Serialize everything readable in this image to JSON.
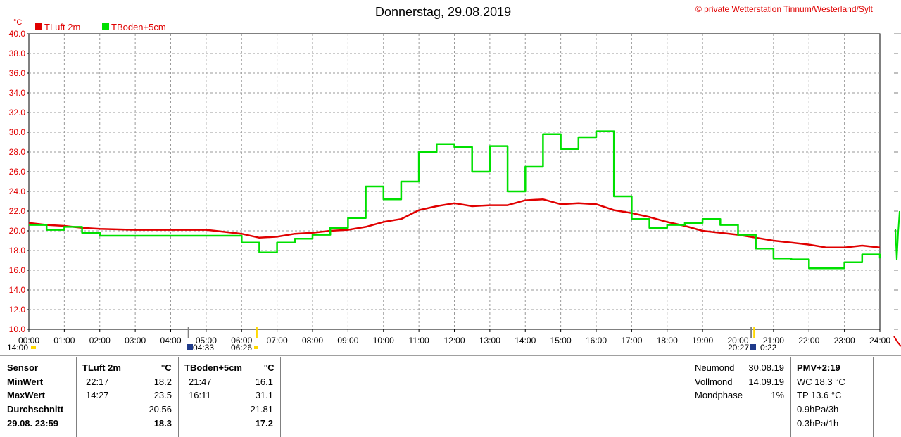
{
  "header": {
    "title": "Donnerstag, 29.08.2019",
    "credit": "© private Wetterstation Tinnum/Westerland/Sylt",
    "unit": "°C"
  },
  "legend": [
    {
      "label": "TLuft 2m",
      "color": "#e00000"
    },
    {
      "label": "TBoden+5cm",
      "color": "#00e000"
    }
  ],
  "chart_data": {
    "type": "line",
    "title": "Donnerstag, 29.08.2019",
    "ylabel": "°C",
    "ylim": [
      10,
      40
    ],
    "yticks": [
      "10.0",
      "12.0",
      "14.0",
      "16.0",
      "18.0",
      "20.0",
      "22.0",
      "24.0",
      "26.0",
      "28.0",
      "30.0",
      "32.0",
      "34.0",
      "36.0",
      "38.0",
      "40.0"
    ],
    "xlim": [
      0,
      24
    ],
    "xticks": [
      "00:00",
      "01:00",
      "02:00",
      "03:00",
      "04:00",
      "05:00",
      "06:00",
      "07:00",
      "08:00",
      "09:00",
      "10:00",
      "11:00",
      "12:00",
      "13:00",
      "14:00",
      "15:00",
      "16:00",
      "17:00",
      "18:00",
      "19:00",
      "20:00",
      "21:00",
      "22:00",
      "23:00",
      "24:00"
    ],
    "grid": true,
    "legend_position": "top-left",
    "series": [
      {
        "name": "TLuft 2m",
        "color": "#e00000",
        "x": [
          0,
          0.5,
          1,
          1.5,
          2,
          3,
          4,
          5,
          5.5,
          6,
          6.5,
          7,
          7.5,
          8,
          8.5,
          9,
          9.5,
          10,
          10.5,
          11,
          11.5,
          12,
          12.5,
          13,
          13.5,
          14,
          14.5,
          15,
          15.5,
          16,
          16.5,
          17,
          17.5,
          18,
          18.5,
          19,
          19.5,
          20,
          20.5,
          21,
          21.5,
          22,
          22.5,
          23,
          23.5,
          24
        ],
        "y": [
          20.8,
          20.6,
          20.5,
          20.3,
          20.2,
          20.1,
          20.1,
          20.1,
          19.9,
          19.7,
          19.3,
          19.4,
          19.7,
          19.8,
          20,
          20.1,
          20.4,
          20.9,
          21.2,
          22.1,
          22.5,
          22.8,
          22.5,
          22.6,
          22.6,
          23.1,
          23.2,
          22.7,
          22.8,
          22.7,
          22.1,
          21.8,
          21.4,
          20.9,
          20.5,
          20,
          19.8,
          19.6,
          19.3,
          19,
          18.8,
          18.6,
          18.3,
          18.3,
          18.5,
          18.3
        ]
      },
      {
        "name": "TBoden+5cm",
        "color": "#00e000",
        "x": [
          0,
          0.5,
          1,
          1.5,
          2,
          3,
          4,
          5,
          5.5,
          6,
          6.5,
          7,
          7.5,
          8,
          8.5,
          9,
          9.5,
          10,
          10.5,
          11,
          11.5,
          12,
          12.5,
          13,
          13.5,
          14,
          14.5,
          15,
          15.5,
          16,
          16.5,
          17,
          17.5,
          18,
          18.5,
          19,
          19.5,
          20,
          20.5,
          21,
          21.5,
          22,
          22.5,
          23,
          23.5,
          24
        ],
        "y": [
          20.6,
          20.1,
          20.4,
          19.8,
          19.5,
          19.5,
          19.5,
          19.5,
          19.5,
          18.8,
          17.8,
          18.8,
          19.2,
          19.6,
          20.3,
          21.3,
          24.5,
          23.2,
          25,
          28,
          28.8,
          28.5,
          26,
          28.6,
          24,
          26.5,
          29.8,
          28.3,
          29.5,
          30.1,
          23.5,
          21.2,
          20.3,
          20.6,
          20.8,
          21.2,
          20.6,
          19.6,
          18.2,
          17.2,
          17.1,
          16.2,
          16.2,
          16.8,
          17.6,
          17.2
        ]
      }
    ]
  },
  "markers": {
    "bottom_left": "14:00",
    "sunrise_time": "04:33",
    "sunrise2_time": "06:26",
    "sunset_time": "20:27",
    "moon_time": "0:22"
  },
  "stats": {
    "col_sensor": [
      "Sensor",
      "MinWert",
      "MaxWert",
      "Durchschnitt",
      "29.08. 23:59"
    ],
    "tluft": {
      "header": "TLuft 2m",
      "unit": "°C",
      "min_time": "22:17",
      "min": "18.2",
      "max_time": "14:27",
      "max": "23.5",
      "avg": "20.56",
      "current": "18.3"
    },
    "tboden": {
      "header": "TBoden+5cm",
      "unit": "°C",
      "min_time": "21:47",
      "min": "16.1",
      "max_time": "16:11",
      "max": "31.1",
      "avg": "21.81",
      "current": "17.2"
    },
    "moon": [
      {
        "label": "Neumond",
        "value": "30.08.19"
      },
      {
        "label": "Vollmond",
        "value": "14.09.19"
      },
      {
        "label": "Mondphase",
        "value": "1%"
      }
    ],
    "pmv": [
      "PMV+2:19",
      "WC 18.3 °C",
      "TP 13.6 °C",
      "0.9hPa/3h",
      "0.3hPa/1h"
    ]
  }
}
